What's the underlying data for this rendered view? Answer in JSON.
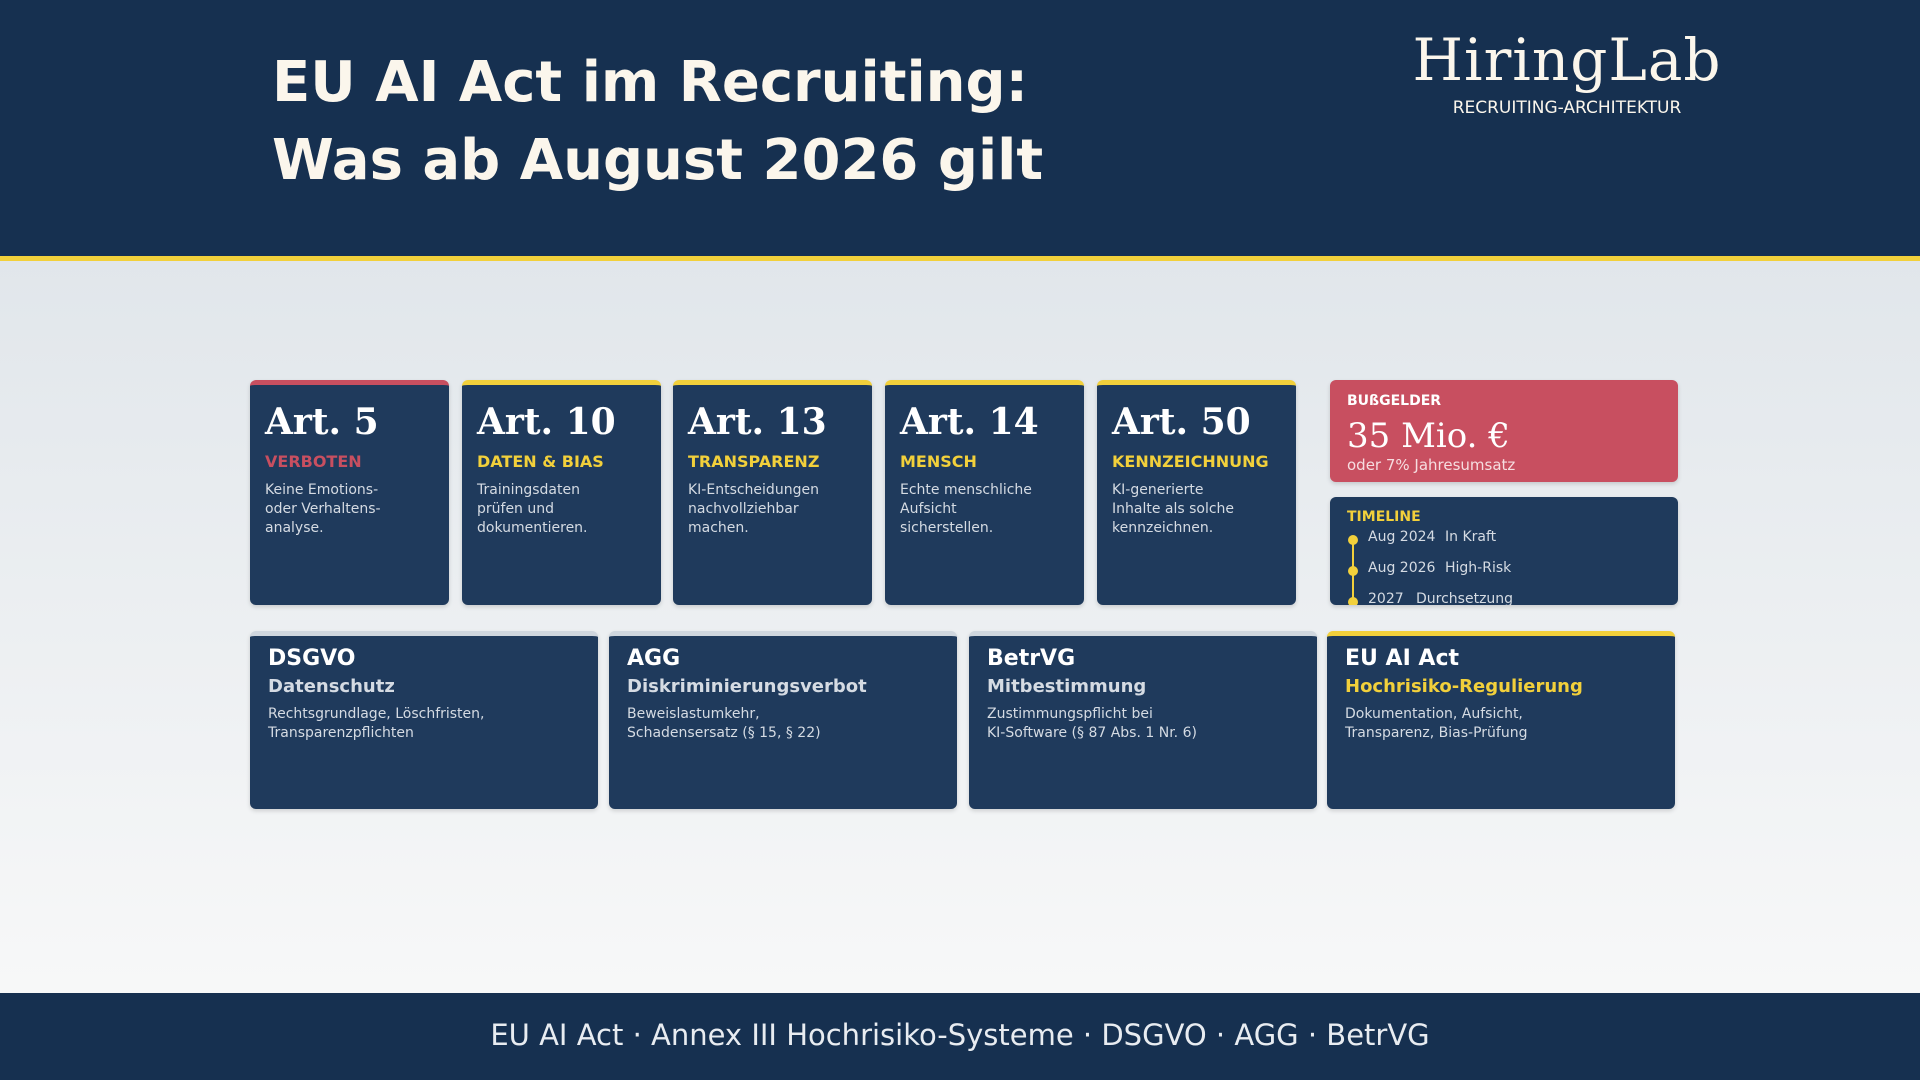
{
  "header": {
    "title_lines": [
      "EU AI Act im Recruiting:",
      "Was ab August 2026 gilt"
    ],
    "logo": "HiringLab",
    "logo_sub": "RECRUITING-ARCHITEKTUR"
  },
  "articles": [
    {
      "title": "Art. 5",
      "tag": "VERBOTEN",
      "lines": [
        "Keine Emotions-",
        "oder Verhaltens-",
        "analyse."
      ],
      "accent": "#c84f60"
    },
    {
      "title": "Art. 10",
      "tag": "DATEN & BIAS",
      "lines": [
        "Trainingsdaten",
        "prüfen und",
        "dokumentieren."
      ],
      "accent": "#f2d03b"
    },
    {
      "title": "Art. 13",
      "tag": "TRANSPARENZ",
      "lines": [
        "KI-Entscheidungen",
        "nachvollziehbar",
        "machen."
      ],
      "accent": "#f2d03b"
    },
    {
      "title": "Art. 14",
      "tag": "MENSCH",
      "lines": [
        "Echte menschliche",
        "Aufsicht",
        "sicherstellen."
      ],
      "accent": "#f2d03b"
    },
    {
      "title": "Art. 50",
      "tag": "KENNZEICHNUNG",
      "lines": [
        "KI-generierte",
        "Inhalte als solche",
        "kennzeichnen."
      ],
      "accent": "#f2d03b"
    }
  ],
  "fines": {
    "label": "BUßGELDER",
    "amount": "35 Mio. €",
    "note": "oder 7% Jahresumsatz"
  },
  "timeline": {
    "label": "TIMELINE",
    "items": [
      {
        "date": "Aug 2024",
        "text": "In Kraft"
      },
      {
        "date": "Aug 2026",
        "text": "High-Risk"
      },
      {
        "date": "2027",
        "text": "Durchsetzung"
      }
    ]
  },
  "laws": [
    {
      "title": "DSGVO",
      "subtitle": "Datenschutz",
      "lines": [
        "Rechtsgrundlage, Löschfristen,",
        "Transparenzpflichten"
      ],
      "highlight": false
    },
    {
      "title": "AGG",
      "subtitle": "Diskriminierungsverbot",
      "lines": [
        "Beweislastumkehr,",
        "Schadensersatz (§ 15, § 22)"
      ],
      "highlight": false
    },
    {
      "title": "BetrVG",
      "subtitle": "Mitbestimmung",
      "lines": [
        "Zustimmungspflicht bei",
        "KI-Software (§ 87 Abs. 1 Nr. 6)"
      ],
      "highlight": false
    },
    {
      "title": "EU AI Act",
      "subtitle": "Hochrisiko-Regulierung",
      "lines": [
        "Dokumentation, Aufsicht,",
        "Transparenz, Bias-Prüfung"
      ],
      "highlight": true
    }
  ],
  "footer": "EU AI Act · Annex III Hochrisiko-Systeme · DSGVO · AGG · BetrVG"
}
